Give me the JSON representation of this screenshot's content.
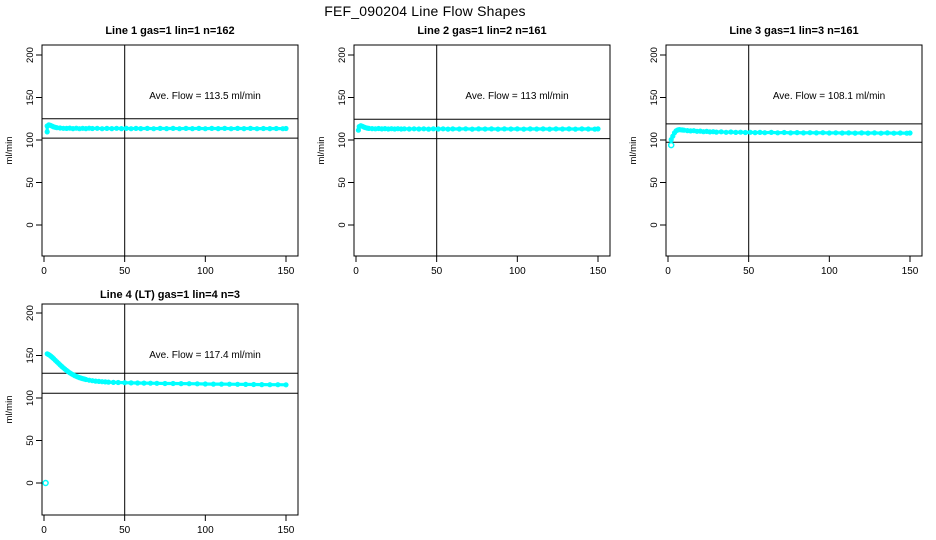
{
  "main_title": "FEF_090204  Line Flow Shapes",
  "colors": {
    "points": "#00FFFF",
    "axis": "#000000",
    "background": "#FFFFFF"
  },
  "chart_data": {
    "type": "scatter",
    "title": "FEF_090204  Line Flow Shapes",
    "grid": "off",
    "marker": "open-circle",
    "panels": [
      {
        "title": "Line 1 gas=1 lin=1 n=162",
        "annotation": "Ave. Flow =  113.5  ml/min",
        "ave_flow": 113.5,
        "ylab": "ml/min",
        "xlim": [
          0,
          150
        ],
        "ylim": [
          0,
          200
        ],
        "x_ticks": [
          "0",
          "50",
          "100",
          "150"
        ],
        "y_ticks": [
          "0",
          "50",
          "100",
          "150",
          "200"
        ],
        "ref_lines": [
          124.9,
          102.2
        ],
        "vline_x": 50,
        "row": 0,
        "col": 0,
        "points": [
          [
            2,
            109.5
          ],
          [
            2,
            116.5
          ],
          [
            3,
            117.8
          ],
          [
            4,
            117.2
          ],
          [
            5,
            116.3
          ],
          [
            6,
            115.4
          ],
          [
            7,
            114.9
          ],
          [
            8,
            114.5
          ],
          [
            10,
            114.1
          ],
          [
            12,
            113.8
          ],
          [
            14,
            113.6
          ],
          [
            16,
            114.0
          ],
          [
            18,
            113.4
          ],
          [
            20,
            113.9
          ],
          [
            22,
            113.3
          ],
          [
            24,
            113.8
          ],
          [
            26,
            113.4
          ],
          [
            28,
            113.9
          ],
          [
            30,
            113.5
          ],
          [
            33,
            113.8
          ],
          [
            36,
            113.3
          ],
          [
            39,
            113.7
          ],
          [
            42,
            113.4
          ],
          [
            45,
            113.8
          ],
          [
            48,
            113.4
          ],
          [
            51,
            113.7
          ],
          [
            54,
            113.3
          ],
          [
            57,
            113.7
          ],
          [
            60,
            113.4
          ],
          [
            64,
            113.7
          ],
          [
            68,
            113.3
          ],
          [
            72,
            113.6
          ],
          [
            76,
            113.4
          ],
          [
            80,
            113.7
          ],
          [
            84,
            113.3
          ],
          [
            88,
            113.6
          ],
          [
            92,
            113.4
          ],
          [
            96,
            113.7
          ],
          [
            100,
            113.3
          ],
          [
            104,
            113.6
          ],
          [
            108,
            113.4
          ],
          [
            112,
            113.6
          ],
          [
            116,
            113.3
          ],
          [
            120,
            113.6
          ],
          [
            124,
            113.4
          ],
          [
            128,
            113.6
          ],
          [
            132,
            113.3
          ],
          [
            136,
            113.5
          ],
          [
            140,
            113.4
          ],
          [
            144,
            113.5
          ],
          [
            148,
            113.3
          ],
          [
            150,
            113.5
          ]
        ],
        "outliers": []
      },
      {
        "title": "Line 2 gas=1 lin=2 n=161",
        "annotation": "Ave. Flow =  113  ml/min",
        "ave_flow": 113,
        "ylab": "ml/min",
        "xlim": [
          0,
          150
        ],
        "ylim": [
          0,
          200
        ],
        "x_ticks": [
          "0",
          "50",
          "100",
          "150"
        ],
        "y_ticks": [
          "0",
          "50",
          "100",
          "150",
          "200"
        ],
        "ref_lines": [
          124.3,
          101.7
        ],
        "vline_x": 50,
        "row": 0,
        "col": 1,
        "points": [
          [
            1.5,
            111.5
          ],
          [
            2,
            115.8
          ],
          [
            3,
            116.8
          ],
          [
            4,
            116.1
          ],
          [
            5,
            115.2
          ],
          [
            6,
            114.5
          ],
          [
            7,
            114.0
          ],
          [
            8,
            113.7
          ],
          [
            10,
            113.4
          ],
          [
            12,
            113.2
          ],
          [
            14,
            113.5
          ],
          [
            16,
            113.0
          ],
          [
            18,
            113.4
          ],
          [
            20,
            112.9
          ],
          [
            22,
            113.3
          ],
          [
            24,
            112.9
          ],
          [
            26,
            113.3
          ],
          [
            28,
            112.9
          ],
          [
            30,
            113.2
          ],
          [
            33,
            112.9
          ],
          [
            36,
            113.2
          ],
          [
            39,
            112.9
          ],
          [
            42,
            113.2
          ],
          [
            45,
            112.8
          ],
          [
            48,
            113.2
          ],
          [
            51,
            112.9
          ],
          [
            54,
            113.2
          ],
          [
            57,
            112.8
          ],
          [
            60,
            113.1
          ],
          [
            64,
            112.9
          ],
          [
            68,
            113.2
          ],
          [
            72,
            112.8
          ],
          [
            76,
            113.1
          ],
          [
            80,
            112.9
          ],
          [
            84,
            113.1
          ],
          [
            88,
            112.8
          ],
          [
            92,
            113.1
          ],
          [
            96,
            112.9
          ],
          [
            100,
            113.1
          ],
          [
            104,
            112.8
          ],
          [
            108,
            113.0
          ],
          [
            112,
            112.9
          ],
          [
            116,
            113.1
          ],
          [
            120,
            112.8
          ],
          [
            124,
            113.0
          ],
          [
            128,
            112.9
          ],
          [
            132,
            113.0
          ],
          [
            136,
            112.8
          ],
          [
            140,
            113.0
          ],
          [
            144,
            112.9
          ],
          [
            148,
            112.8
          ],
          [
            150,
            113.0
          ]
        ],
        "outliers": []
      },
      {
        "title": "Line 3 gas=1 lin=3 n=161",
        "annotation": "Ave. Flow =  108.1  ml/min",
        "ave_flow": 108.1,
        "ylab": "ml/min",
        "xlim": [
          0,
          150
        ],
        "ylim": [
          0,
          200
        ],
        "x_ticks": [
          "0",
          "50",
          "100",
          "150"
        ],
        "y_ticks": [
          "0",
          "50",
          "100",
          "150",
          "200"
        ],
        "ref_lines": [
          118.9,
          97.3
        ],
        "vline_x": 50,
        "row": 0,
        "col": 2,
        "points": [
          [
            2,
            100.5
          ],
          [
            3,
            104.5
          ],
          [
            4,
            108.5
          ],
          [
            5,
            110.8
          ],
          [
            6,
            111.8
          ],
          [
            7,
            112.2
          ],
          [
            8,
            112.0
          ],
          [
            9,
            111.8
          ],
          [
            10,
            111.5
          ],
          [
            12,
            111.1
          ],
          [
            14,
            110.7
          ],
          [
            16,
            110.9
          ],
          [
            18,
            110.2
          ],
          [
            20,
            110.5
          ],
          [
            22,
            109.8
          ],
          [
            24,
            110.1
          ],
          [
            26,
            109.5
          ],
          [
            28,
            109.8
          ],
          [
            30,
            109.3
          ],
          [
            33,
            109.6
          ],
          [
            36,
            109.1
          ],
          [
            39,
            109.4
          ],
          [
            42,
            108.9
          ],
          [
            45,
            109.2
          ],
          [
            48,
            108.8
          ],
          [
            51,
            109.1
          ],
          [
            54,
            108.7
          ],
          [
            57,
            109.0
          ],
          [
            60,
            108.6
          ],
          [
            64,
            108.9
          ],
          [
            68,
            108.5
          ],
          [
            72,
            108.8
          ],
          [
            76,
            108.4
          ],
          [
            80,
            108.7
          ],
          [
            84,
            108.3
          ],
          [
            88,
            108.6
          ],
          [
            92,
            108.3
          ],
          [
            96,
            108.6
          ],
          [
            100,
            108.2
          ],
          [
            104,
            108.5
          ],
          [
            108,
            108.2
          ],
          [
            112,
            108.4
          ],
          [
            116,
            108.1
          ],
          [
            120,
            108.4
          ],
          [
            124,
            108.1
          ],
          [
            128,
            108.3
          ],
          [
            132,
            108.0
          ],
          [
            136,
            108.3
          ],
          [
            140,
            108.0
          ],
          [
            144,
            108.2
          ],
          [
            148,
            108.0
          ],
          [
            150,
            108.2
          ]
        ],
        "outliers": [
          [
            2,
            94
          ]
        ]
      },
      {
        "title": "Line 4 (LT) gas=1 lin=4 n=3",
        "annotation": "Ave. Flow =  117.4  ml/min",
        "ave_flow": 117.4,
        "ylab": "ml/min",
        "xlim": [
          0,
          150
        ],
        "ylim": [
          0,
          200
        ],
        "x_ticks": [
          "0",
          "50",
          "100",
          "150"
        ],
        "y_ticks": [
          "0",
          "50",
          "100",
          "150",
          "200"
        ],
        "ref_lines": [
          129.1,
          105.7
        ],
        "vline_x": 50,
        "row": 1,
        "col": 0,
        "points": [
          [
            2,
            152
          ],
          [
            2.8,
            151.2
          ],
          [
            3.6,
            150.2
          ],
          [
            4.4,
            149.0
          ],
          [
            5.2,
            147.6
          ],
          [
            6,
            146.2
          ],
          [
            7,
            144.4
          ],
          [
            8,
            142.6
          ],
          [
            9,
            140.8
          ],
          [
            10,
            139.0
          ],
          [
            11,
            137.2
          ],
          [
            12,
            135.5
          ],
          [
            13,
            133.9
          ],
          [
            14,
            132.4
          ],
          [
            15,
            131.0
          ],
          [
            16,
            129.7
          ],
          [
            17,
            128.5
          ],
          [
            18,
            127.4
          ],
          [
            19,
            126.4
          ],
          [
            20,
            125.5
          ],
          [
            21,
            124.7
          ],
          [
            22,
            124.0
          ],
          [
            23,
            123.4
          ],
          [
            24,
            122.8
          ],
          [
            25,
            122.3
          ],
          [
            26,
            121.8
          ],
          [
            28,
            121.0
          ],
          [
            30,
            120.4
          ],
          [
            32,
            119.9
          ],
          [
            34,
            119.5
          ],
          [
            36,
            119.2
          ],
          [
            38,
            118.9
          ],
          [
            40,
            118.7
          ],
          [
            43,
            118.4
          ],
          [
            46,
            118.2
          ],
          [
            50,
            118.0
          ],
          [
            54,
            117.8
          ],
          [
            58,
            117.6
          ],
          [
            62,
            117.5
          ],
          [
            66,
            117.4
          ],
          [
            70,
            117.3
          ],
          [
            75,
            117.1
          ],
          [
            80,
            117.0
          ],
          [
            85,
            116.9
          ],
          [
            90,
            116.8
          ],
          [
            95,
            116.7
          ],
          [
            100,
            116.5
          ],
          [
            105,
            116.4
          ],
          [
            110,
            116.3
          ],
          [
            115,
            116.2
          ],
          [
            120,
            116.1
          ],
          [
            125,
            116.0
          ],
          [
            130,
            115.9
          ],
          [
            135,
            115.8
          ],
          [
            140,
            115.7
          ],
          [
            145,
            115.6
          ],
          [
            150,
            115.5
          ]
        ],
        "outliers": [
          [
            1,
            0
          ]
        ]
      }
    ]
  }
}
